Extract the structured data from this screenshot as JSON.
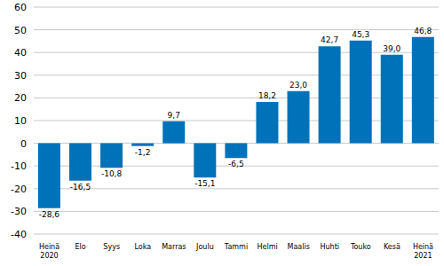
{
  "chart_data": {
    "type": "bar",
    "categories": [
      "Heinä\n2020",
      "Elo",
      "Syys",
      "Loka",
      "Marras",
      "Joulu",
      "Tammi",
      "Helmi",
      "Maalis",
      "Huhti",
      "Touko",
      "Kesä",
      "Heinä\n2021"
    ],
    "values": [
      -28.6,
      -16.5,
      -10.8,
      -1.2,
      9.7,
      -15.1,
      -6.5,
      18.2,
      23.0,
      42.7,
      45.3,
      39.0,
      46.8
    ],
    "value_labels": [
      "-28,6",
      "-16,5",
      "-10,8",
      "-1,2",
      "9,7",
      "-15,1",
      "-6,5",
      "18,2",
      "23,0",
      "42,7",
      "45,3",
      "39,0",
      "46,8"
    ],
    "color": "#0072b9",
    "ylim": [
      -40,
      60
    ],
    "yticks": [
      -40,
      -30,
      -20,
      -10,
      0,
      10,
      20,
      30,
      40,
      50,
      60
    ],
    "grid": true,
    "data_labels": true
  }
}
